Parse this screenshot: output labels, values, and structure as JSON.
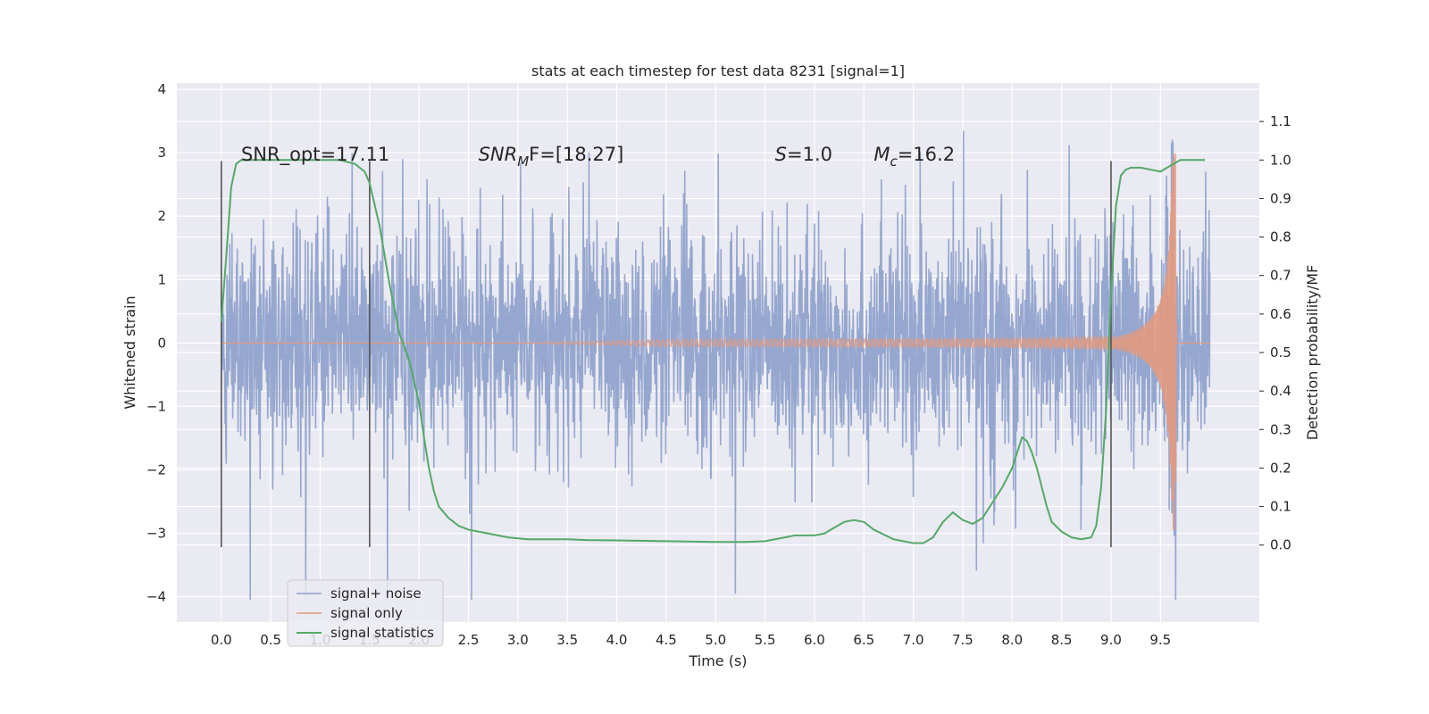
{
  "chart_data": {
    "type": "line",
    "title": "stats at each timestep for test data 8231 [signal=1]",
    "xlabel": "Time (s)",
    "ylabel": "Whitened strain",
    "y2label": "Detection probability/MF",
    "xlim": [
      -0.45,
      10.5
    ],
    "ylim": [
      -4.4,
      4.1
    ],
    "y2lim": [
      -0.2,
      1.2
    ],
    "xticks": [
      "0.0",
      "0.5",
      "1.0",
      "1.5",
      "2.0",
      "2.5",
      "3.0",
      "3.5",
      "4.0",
      "4.5",
      "5.0",
      "5.5",
      "6.0",
      "6.5",
      "7.0",
      "7.5",
      "8.0",
      "8.5",
      "9.0",
      "9.5"
    ],
    "yticks": [
      "4",
      "3",
      "2",
      "1",
      "0",
      "−1",
      "−2",
      "−3",
      "−4"
    ],
    "y2ticks": [
      "1.1",
      "1.0",
      "0.9",
      "0.8",
      "0.7",
      "0.6",
      "0.5",
      "0.4",
      "0.3",
      "0.2",
      "0.1",
      "0.0"
    ],
    "grid": true,
    "legend_position": "lower-left",
    "colors": {
      "noise": "#8da0cb",
      "signal": "#e29a7e",
      "stats": "#55a868",
      "vline": "#555555",
      "axes_bg": "#eaeaf2",
      "grid": "#ffffff"
    },
    "series": [
      {
        "name": "signal+ noise",
        "description_values": "noisy whitened strain from 0.0 to 10.0 s, mostly within about -2.5..2.5 with peaks to about 3.6 and -4.0",
        "x_range": [
          0.0,
          10.0
        ],
        "values_sample": []
      },
      {
        "name": "signal only",
        "x_range": [
          0.0,
          10.0
        ],
        "values_sample": []
      },
      {
        "name": "signal statistics",
        "axis": "right",
        "x": [
          0.0,
          0.05,
          0.1,
          0.15,
          0.2,
          0.3,
          0.5,
          0.8,
          1.0,
          1.2,
          1.35,
          1.45,
          1.5,
          1.6,
          1.7,
          1.8,
          1.9,
          2.0,
          2.05,
          2.1,
          2.15,
          2.2,
          2.3,
          2.4,
          2.5,
          2.7,
          2.9,
          3.1,
          3.3,
          3.5,
          3.7,
          4.0,
          4.5,
          5.0,
          5.3,
          5.5,
          5.7,
          5.8,
          5.9,
          6.0,
          6.1,
          6.2,
          6.3,
          6.4,
          6.5,
          6.6,
          6.8,
          7.0,
          7.1,
          7.2,
          7.3,
          7.4,
          7.5,
          7.6,
          7.7,
          7.8,
          7.9,
          8.0,
          8.05,
          8.1,
          8.15,
          8.2,
          8.25,
          8.3,
          8.35,
          8.4,
          8.5,
          8.6,
          8.7,
          8.8,
          8.85,
          8.9,
          8.95,
          9.0,
          9.05,
          9.1,
          9.15,
          9.2,
          9.3,
          9.4,
          9.5,
          9.6,
          9.7,
          9.8,
          9.9,
          9.95
        ],
        "values": [
          0.58,
          0.75,
          0.93,
          0.99,
          1.0,
          1.0,
          1.0,
          1.0,
          1.0,
          1.0,
          0.99,
          0.97,
          0.94,
          0.83,
          0.68,
          0.55,
          0.48,
          0.37,
          0.28,
          0.2,
          0.14,
          0.1,
          0.07,
          0.05,
          0.04,
          0.03,
          0.02,
          0.015,
          0.015,
          0.015,
          0.013,
          0.012,
          0.01,
          0.008,
          0.008,
          0.01,
          0.02,
          0.025,
          0.025,
          0.025,
          0.03,
          0.045,
          0.06,
          0.065,
          0.06,
          0.04,
          0.015,
          0.005,
          0.005,
          0.02,
          0.06,
          0.085,
          0.065,
          0.055,
          0.07,
          0.11,
          0.15,
          0.2,
          0.24,
          0.28,
          0.27,
          0.24,
          0.2,
          0.15,
          0.1,
          0.06,
          0.035,
          0.02,
          0.015,
          0.02,
          0.05,
          0.15,
          0.35,
          0.65,
          0.88,
          0.96,
          0.975,
          0.98,
          0.98,
          0.975,
          0.97,
          0.985,
          1.0,
          1.0,
          1.0,
          1.0
        ]
      }
    ],
    "vlines": [
      0.0,
      1.5,
      9.0
    ],
    "annotations": [
      {
        "text": "SNR_opt=17.11",
        "x": 0.2
      },
      {
        "text_main": "SNR",
        "text_sub": "M",
        "text_rest": "F=[18.27]",
        "x": 2.6
      },
      {
        "text_main": "S",
        "text_rest": "=1.0",
        "x": 5.6
      },
      {
        "text_main": "M",
        "text_sub": "c",
        "text_rest": "=16.2",
        "x": 6.6
      }
    ]
  }
}
